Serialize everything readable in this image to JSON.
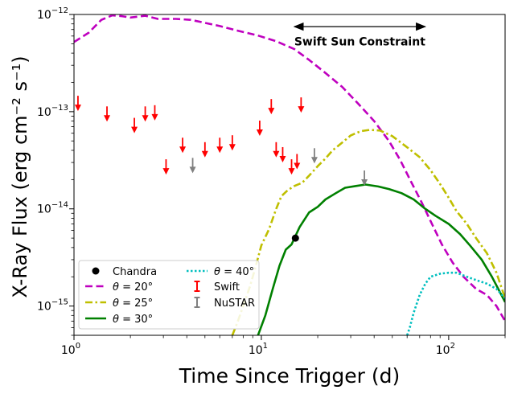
{
  "chart_data": {
    "type": "line",
    "xlabel": "Time Since Trigger (d)",
    "ylabel": "X-Ray Flux (erg cm⁻² s⁻¹)",
    "xscale": "log",
    "yscale": "log",
    "xlim": [
      1,
      200
    ],
    "ylim": [
      5e-16,
      1e-12
    ],
    "x_ticks": [
      {
        "value": 1,
        "base": "10",
        "exp": "0"
      },
      {
        "value": 10,
        "base": "10",
        "exp": "1"
      },
      {
        "value": 100,
        "base": "10",
        "exp": "2"
      }
    ],
    "y_ticks": [
      {
        "value": 1e-15,
        "base": "10",
        "exp": "−15"
      },
      {
        "value": 1e-14,
        "base": "10",
        "exp": "−14"
      },
      {
        "value": 1e-13,
        "base": "10",
        "exp": "−13"
      },
      {
        "value": 1e-12,
        "base": "10",
        "exp": "−12"
      }
    ],
    "annotation": {
      "text": "Swift Sun Constraint",
      "x_range": [
        15,
        75
      ],
      "y_arrow": 7.5e-13,
      "y_text": 5.3e-13
    },
    "series": [
      {
        "name": "θ = 20°",
        "color": "#bf00bf",
        "style": "dashed",
        "points": [
          [
            1.0,
            5.2e-13
          ],
          [
            1.2,
            6.5e-13
          ],
          [
            1.4,
            8.8e-13
          ],
          [
            1.6,
            9.8e-13
          ],
          [
            1.8,
            9.6e-13
          ],
          [
            2.0,
            9.3e-13
          ],
          [
            2.4,
            9.7e-13
          ],
          [
            2.8,
            9e-13
          ],
          [
            3.5,
            9e-13
          ],
          [
            4.2,
            8.8e-13
          ],
          [
            5.0,
            8.2e-13
          ],
          [
            6.0,
            7.6e-13
          ],
          [
            7.5,
            6.8e-13
          ],
          [
            9.5,
            6.1e-13
          ],
          [
            12,
            5.3e-13
          ],
          [
            15,
            4.4e-13
          ],
          [
            18,
            3.4e-13
          ],
          [
            22,
            2.5e-13
          ],
          [
            27,
            1.8e-13
          ],
          [
            33,
            1.2e-13
          ],
          [
            40,
            8e-14
          ],
          [
            48,
            5e-14
          ],
          [
            55,
            3.2e-14
          ],
          [
            63,
            1.9e-14
          ],
          [
            72,
            1.15e-14
          ],
          [
            82,
            6.8e-15
          ],
          [
            92,
            4.3e-15
          ],
          [
            105,
            2.8e-15
          ],
          [
            120,
            2e-15
          ],
          [
            140,
            1.5e-15
          ],
          [
            160,
            1.3e-15
          ],
          [
            180,
            1e-15
          ],
          [
            200,
            7e-16
          ]
        ]
      },
      {
        "name": "θ = 25°",
        "color": "#bfbf00",
        "style": "dashdot",
        "points": [
          [
            7.0,
            5e-16
          ],
          [
            7.5,
            7e-16
          ],
          [
            8.0,
            1e-15
          ],
          [
            8.7,
            1.6e-15
          ],
          [
            9.3,
            2.5e-15
          ],
          [
            10,
            4.2e-15
          ],
          [
            11,
            6.2e-15
          ],
          [
            12,
            1e-14
          ],
          [
            12.8,
            1.35e-14
          ],
          [
            13.8,
            1.55e-14
          ],
          [
            15,
            1.72e-14
          ],
          [
            16.5,
            1.85e-14
          ],
          [
            18,
            2.2e-14
          ],
          [
            20,
            2.75e-14
          ],
          [
            22,
            3.3e-14
          ],
          [
            24,
            4e-14
          ],
          [
            27,
            4.8e-14
          ],
          [
            30,
            5.7e-14
          ],
          [
            34,
            6.3e-14
          ],
          [
            38,
            6.5e-14
          ],
          [
            43,
            6.4e-14
          ],
          [
            50,
            5.6e-14
          ],
          [
            60,
            4.3e-14
          ],
          [
            70,
            3.4e-14
          ],
          [
            80,
            2.5e-14
          ],
          [
            90,
            1.8e-14
          ],
          [
            100,
            1.3e-14
          ],
          [
            110,
            9.5e-15
          ],
          [
            125,
            7e-15
          ],
          [
            140,
            5e-15
          ],
          [
            160,
            3.5e-15
          ],
          [
            180,
            2.2e-15
          ],
          [
            200,
            1.2e-15
          ]
        ]
      },
      {
        "name": "θ = 30°",
        "color": "#008000",
        "style": "solid",
        "points": [
          [
            9.6,
            5e-16
          ],
          [
            10.5,
            8e-16
          ],
          [
            11.5,
            1.5e-15
          ],
          [
            12.5,
            2.6e-15
          ],
          [
            13.5,
            3.8e-15
          ],
          [
            14.5,
            4.3e-15
          ],
          [
            16,
            6.5e-15
          ],
          [
            18,
            9.2e-15
          ],
          [
            20,
            1.05e-14
          ],
          [
            22,
            1.25e-14
          ],
          [
            25,
            1.45e-14
          ],
          [
            28,
            1.65e-14
          ],
          [
            32,
            1.72e-14
          ],
          [
            36,
            1.78e-14
          ],
          [
            42,
            1.7e-14
          ],
          [
            48,
            1.6e-14
          ],
          [
            56,
            1.45e-14
          ],
          [
            65,
            1.25e-14
          ],
          [
            75,
            1e-14
          ],
          [
            85,
            8.5e-15
          ],
          [
            100,
            7e-15
          ],
          [
            115,
            5.5e-15
          ],
          [
            130,
            4.2e-15
          ],
          [
            150,
            3e-15
          ],
          [
            170,
            2e-15
          ],
          [
            200,
            1.1e-15
          ]
        ]
      },
      {
        "name": "θ = 40°",
        "color": "#00bfbf",
        "style": "dotted",
        "points": [
          [
            60,
            5e-16
          ],
          [
            62,
            6e-16
          ],
          [
            65,
            8.5e-16
          ],
          [
            70,
            1.3e-15
          ],
          [
            75,
            1.7e-15
          ],
          [
            80,
            2e-15
          ],
          [
            90,
            2.15e-15
          ],
          [
            100,
            2.2e-15
          ],
          [
            110,
            2.2e-15
          ],
          [
            125,
            2e-15
          ],
          [
            140,
            1.85e-15
          ],
          [
            160,
            1.7e-15
          ],
          [
            180,
            1.5e-15
          ],
          [
            200,
            1.2e-15
          ]
        ]
      }
    ],
    "chandra": {
      "name": "Chandra",
      "color": "#000000",
      "points": [
        [
          15.2,
          5e-15
        ]
      ]
    },
    "upper_limits": [
      {
        "name": "Swift",
        "color": "#ff0000",
        "points": [
          [
            1.05,
            1.35e-13
          ],
          [
            1.5,
            1.05e-13
          ],
          [
            2.1,
            8e-14
          ],
          [
            2.4,
            1.05e-13
          ],
          [
            2.7,
            1.08e-13
          ],
          [
            3.1,
            3e-14
          ],
          [
            3.8,
            5e-14
          ],
          [
            5.0,
            4.5e-14
          ],
          [
            6.0,
            5e-14
          ],
          [
            7.0,
            5.3e-14
          ],
          [
            9.8,
            7.5e-14
          ],
          [
            11.3,
            1.25e-13
          ],
          [
            12.0,
            4.5e-14
          ],
          [
            13.0,
            4e-14
          ],
          [
            14.5,
            3e-14
          ],
          [
            15.5,
            3.4e-14
          ],
          [
            16.3,
            1.3e-13
          ]
        ]
      },
      {
        "name": "NuSTAR",
        "color": "#808080",
        "points": [
          [
            4.3,
            3.1e-14
          ],
          [
            19.2,
            3.9e-14
          ],
          [
            35.5,
            2.3e-14
          ]
        ]
      }
    ]
  }
}
